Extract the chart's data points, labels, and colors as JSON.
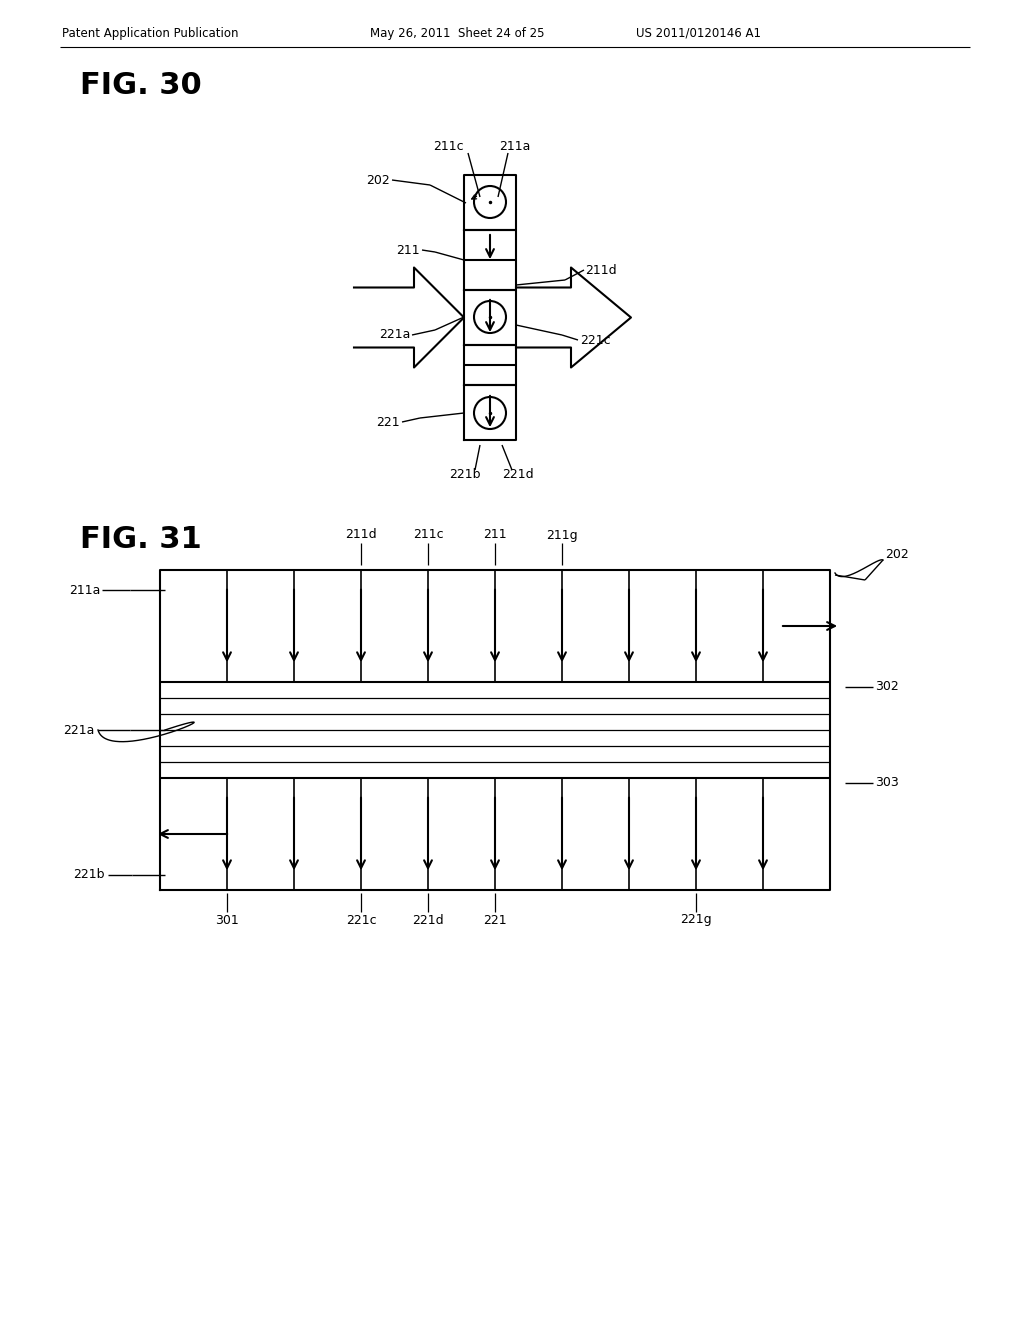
{
  "bg_color": "#ffffff",
  "text_color": "#000000",
  "header_left": "Patent Application Publication",
  "header_mid": "May 26, 2011  Sheet 24 of 25",
  "header_right": "US 2011/0120146 A1",
  "fig30_title": "FIG. 30",
  "fig31_title": "FIG. 31",
  "line_color": "#000000",
  "line_width": 1.5
}
